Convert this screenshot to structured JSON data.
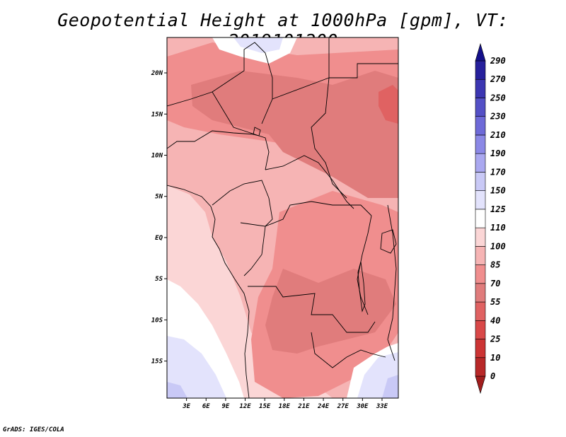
{
  "title": "Geopotential Height at 1000hPa [gpm], VT: 2019101200",
  "footer": "GrADS: IGES/COLA",
  "map": {
    "lat_ticks": [
      {
        "value": 20,
        "label": "20N"
      },
      {
        "value": 15,
        "label": "15N"
      },
      {
        "value": 10,
        "label": "10N"
      },
      {
        "value": 5,
        "label": "5N"
      },
      {
        "value": 0,
        "label": "EQ"
      },
      {
        "value": -5,
        "label": "5S"
      },
      {
        "value": -10,
        "label": "10S"
      },
      {
        "value": -15,
        "label": "15S"
      }
    ],
    "lon_ticks": [
      {
        "value": 3,
        "label": "3E"
      },
      {
        "value": 6,
        "label": "6E"
      },
      {
        "value": 9,
        "label": "9E"
      },
      {
        "value": 12,
        "label": "12E"
      },
      {
        "value": 15,
        "label": "15E"
      },
      {
        "value": 18,
        "label": "18E"
      },
      {
        "value": 21,
        "label": "21E"
      },
      {
        "value": 24,
        "label": "24E"
      },
      {
        "value": 27,
        "label": "27E"
      },
      {
        "value": 30,
        "label": "30E"
      },
      {
        "value": 33,
        "label": "33E"
      }
    ]
  },
  "colorbar": {
    "levels": [
      "0",
      "10",
      "25",
      "40",
      "55",
      "70",
      "85",
      "100",
      "110",
      "125",
      "150",
      "170",
      "190",
      "210",
      "230",
      "250",
      "270",
      "290"
    ],
    "colors": [
      "#a11d1d",
      "#b82828",
      "#cc3434",
      "#d94848",
      "#e06262",
      "#e07c7c",
      "#f08e8e",
      "#f6b4b4",
      "#fbd6d6",
      "#ffffff",
      "#e3e3fc",
      "#c9c9f6",
      "#aaa8f0",
      "#8b88e6",
      "#6e6ad8",
      "#5450c6",
      "#3c36b2",
      "#26209c",
      "#14108a"
    ]
  },
  "fields": {
    "ocean": "#fbd6d6",
    "land": "#f6b4b4",
    "warm": "#f08e8e",
    "deep": "#e07c7c",
    "deepest": "#e06262",
    "cool": "#ffffff",
    "low": "#e3e3fc",
    "lower": "#c9c9f6"
  }
}
